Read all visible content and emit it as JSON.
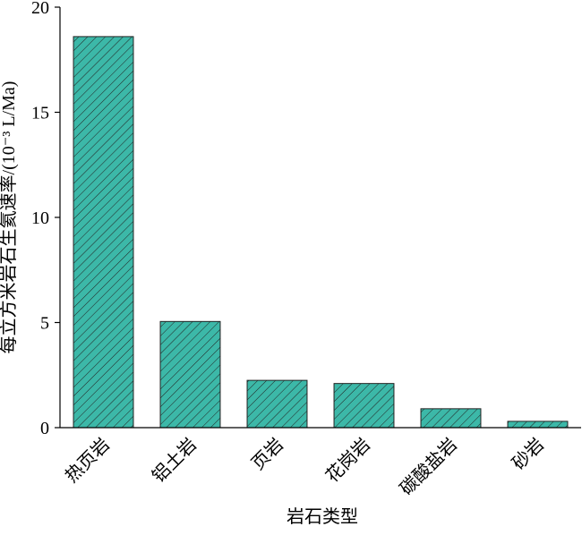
{
  "chart_data": {
    "type": "bar",
    "y_label": "每立方米岩石生氦速率/(10⁻³ L/Ma)",
    "x_label": "岩石类型",
    "categories": [
      "热页岩",
      "铝土岩",
      "页岩",
      "花岗岩",
      "碳酸盐岩",
      "砂岩"
    ],
    "values": [
      18.6,
      5.05,
      2.25,
      2.1,
      0.9,
      0.3
    ],
    "color": "#3cb8a8",
    "hatch": true,
    "ylim": [
      0,
      20
    ],
    "yticks": [
      0,
      5,
      10,
      15,
      20
    ],
    "grid": false
  }
}
